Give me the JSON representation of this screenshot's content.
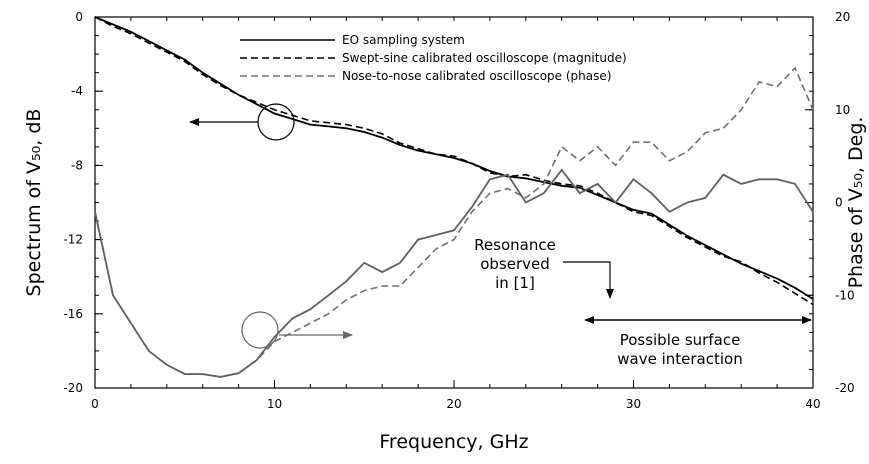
{
  "chart_data": {
    "type": "line",
    "x_label": "Frequency, GHz",
    "y_label": "Spectrum of V₅₀, dB",
    "y2_label": "Phase of V₅₀, Deg.",
    "x": [
      0,
      1,
      2,
      3,
      4,
      5,
      6,
      7,
      8,
      9,
      10,
      11,
      12,
      13,
      14,
      15,
      16,
      17,
      18,
      19,
      20,
      21,
      22,
      23,
      24,
      25,
      26,
      27,
      28,
      29,
      30,
      31,
      32,
      33,
      34,
      35,
      36,
      37,
      38,
      39,
      40
    ],
    "xlim": [
      0,
      40
    ],
    "xticks": [
      0,
      10,
      20,
      30,
      40
    ],
    "ylim": [
      -20,
      0
    ],
    "yticks": [
      0,
      -4,
      -8,
      -12,
      -16,
      -20
    ],
    "y2lim": [
      -20,
      20
    ],
    "y2ticks": [
      20,
      10,
      0,
      -10,
      -20
    ],
    "series": [
      {
        "name": "EO sampling system",
        "color": "#000000",
        "dash": false,
        "values": [
          0,
          -0.4,
          -0.8,
          -1.3,
          -1.8,
          -2.3,
          -3.0,
          -3.6,
          -4.2,
          -4.7,
          -5.2,
          -5.5,
          -5.8,
          -5.9,
          -6.0,
          -6.2,
          -6.5,
          -6.9,
          -7.2,
          -7.4,
          -7.6,
          -7.9,
          -8.3,
          -8.6,
          -8.7,
          -8.9,
          -9.1,
          -9.2,
          -9.6,
          -10.0,
          -10.4,
          -10.6,
          -11.2,
          -11.8,
          -12.3,
          -12.8,
          -13.3,
          -13.7,
          -14.1,
          -14.6,
          -15.2
        ]
      },
      {
        "name": "Swept-sine calibrated oscilloscope (magnitude)",
        "color": "#000000",
        "dash": true,
        "values": [
          0,
          -0.5,
          -0.9,
          -1.4,
          -1.9,
          -2.4,
          -3.1,
          -3.7,
          -4.2,
          -4.6,
          -5.0,
          -5.3,
          -5.6,
          -5.7,
          -5.8,
          -6.0,
          -6.3,
          -6.8,
          -7.1,
          -7.4,
          -7.5,
          -7.9,
          -8.4,
          -8.6,
          -8.5,
          -8.8,
          -9.0,
          -9.1,
          -9.5,
          -10.0,
          -10.5,
          -10.7,
          -11.3,
          -11.9,
          -12.4,
          -12.9,
          -13.2,
          -13.8,
          -14.3,
          -14.9,
          -15.5
        ]
      },
      {
        "name": "Nose-to-nose calibrated oscilloscope (phase)",
        "color": "#707070",
        "dash": true,
        "axis": "y2",
        "values": [
          -1,
          -10,
          -13,
          -16,
          -17.5,
          -18.5,
          -18.5,
          -18.8,
          -18.4,
          -17,
          -15,
          -14,
          -13,
          -12,
          -10.5,
          -9.5,
          -9,
          -9,
          -7,
          -5,
          -4,
          -1,
          1,
          1.5,
          0.5,
          2,
          6,
          4.5,
          6,
          4,
          6.5,
          6.5,
          4.5,
          5.5,
          7.5,
          8,
          10,
          13,
          12.5,
          14.5,
          10
        ]
      },
      {
        "color": "#606060",
        "dash": false,
        "axis": "y2",
        "values": [
          -1,
          -10,
          -13,
          -16,
          -17.5,
          -18.5,
          -18.5,
          -18.8,
          -18.4,
          -17,
          -14.5,
          -12.5,
          -11.5,
          -10,
          -8.5,
          -6.5,
          -7.5,
          -6.5,
          -4,
          -3.5,
          -3,
          -0.5,
          2.5,
          3,
          0,
          1,
          3.5,
          1,
          2,
          0,
          2.5,
          1,
          -1,
          0,
          0.5,
          3,
          2,
          2.5,
          2.5,
          2,
          -1
        ]
      }
    ],
    "annotations": [
      {
        "lines": [
          "Resonance",
          "observed",
          "in [1]"
        ]
      },
      {
        "lines": [
          "Possible surface",
          "wave interaction"
        ]
      }
    ]
  }
}
